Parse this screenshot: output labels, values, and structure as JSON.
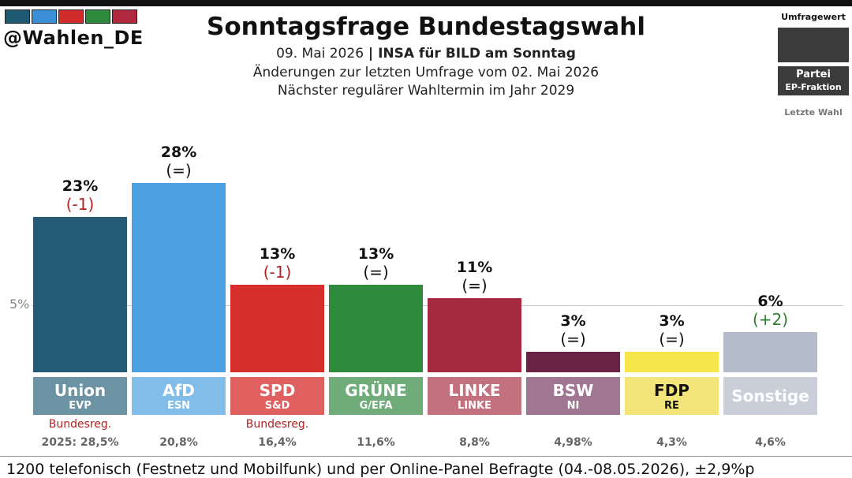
{
  "header": {
    "handle": "@Wahlen_DE",
    "title": "Sonntagsfrage Bundestagswahl",
    "date": "09. Mai 2026",
    "separator": " | ",
    "institute": "INSA für BILD am Sonntag",
    "changes_note": "Änderungen zur letzten Umfrage vom 02. Mai 2026",
    "next_election": "Nächster regulärer Wahltermin im Jahr 2029",
    "swatch_colors": [
      "#1f5a73",
      "#3b8fd6",
      "#d12b2b",
      "#2e8b3e",
      "#b0293f"
    ]
  },
  "legend": {
    "value_label": "Umfragewert",
    "party_label": "Partei",
    "faction_label": "EP-Fraktion",
    "last_election_label": "Letzte Wahl"
  },
  "reference": {
    "label": "5%",
    "value": 5
  },
  "chart_data": {
    "type": "bar",
    "title": "Sonntagsfrage Bundestagswahl",
    "categories": [
      "Union",
      "AfD",
      "SPD",
      "GRÜNE",
      "LINKE",
      "BSW",
      "FDP",
      "Sonstige"
    ],
    "values": [
      23,
      28,
      13,
      13,
      11,
      3,
      3,
      6
    ],
    "value_labels": [
      "23%",
      "28%",
      "13%",
      "13%",
      "11%",
      "3%",
      "3%",
      "6%"
    ],
    "changes": [
      "(-1)",
      "(=)",
      "(-1)",
      "(=)",
      "(=)",
      "(=)",
      "(=)",
      "(+2)"
    ],
    "change_types": [
      "neg",
      "same",
      "neg",
      "same",
      "same",
      "same",
      "same",
      "pos"
    ],
    "factions": [
      "EVP",
      "ESN",
      "S&D",
      "G/EFA",
      "LINKE",
      "NI",
      "RE",
      ""
    ],
    "last_election": [
      "2025: 28,5%",
      "20,8%",
      "16,4%",
      "11,6%",
      "8,8%",
      "4,98%",
      "4,3%",
      "4,6%"
    ],
    "government_label": "Bundesreg.",
    "government": [
      true,
      false,
      true,
      false,
      false,
      false,
      false,
      false
    ],
    "bar_colors": [
      "#245a73",
      "#4aa0e0",
      "#d62f2b",
      "#2e8b3e",
      "#a52a40",
      "#6a2347",
      "#f7e64a",
      "#b4bccb"
    ],
    "box_colors": [
      "#6b93a4",
      "#82bde9",
      "#e06060",
      "#6fac79",
      "#c4717f",
      "#a07692",
      "#f4e57a",
      "#c9ced9"
    ],
    "box_text_colors": [
      "#ffffff",
      "#ffffff",
      "#ffffff",
      "#ffffff",
      "#ffffff",
      "#ffffff",
      "#111111",
      "#ffffff"
    ],
    "ylim": [
      0,
      28
    ],
    "xlabel": "",
    "ylabel": ""
  },
  "footer": "1200 telefonisch (Festnetz und Mobilfunk) und per Online-Panel Befragte (04.-08.05.2026), ±2,9%p"
}
